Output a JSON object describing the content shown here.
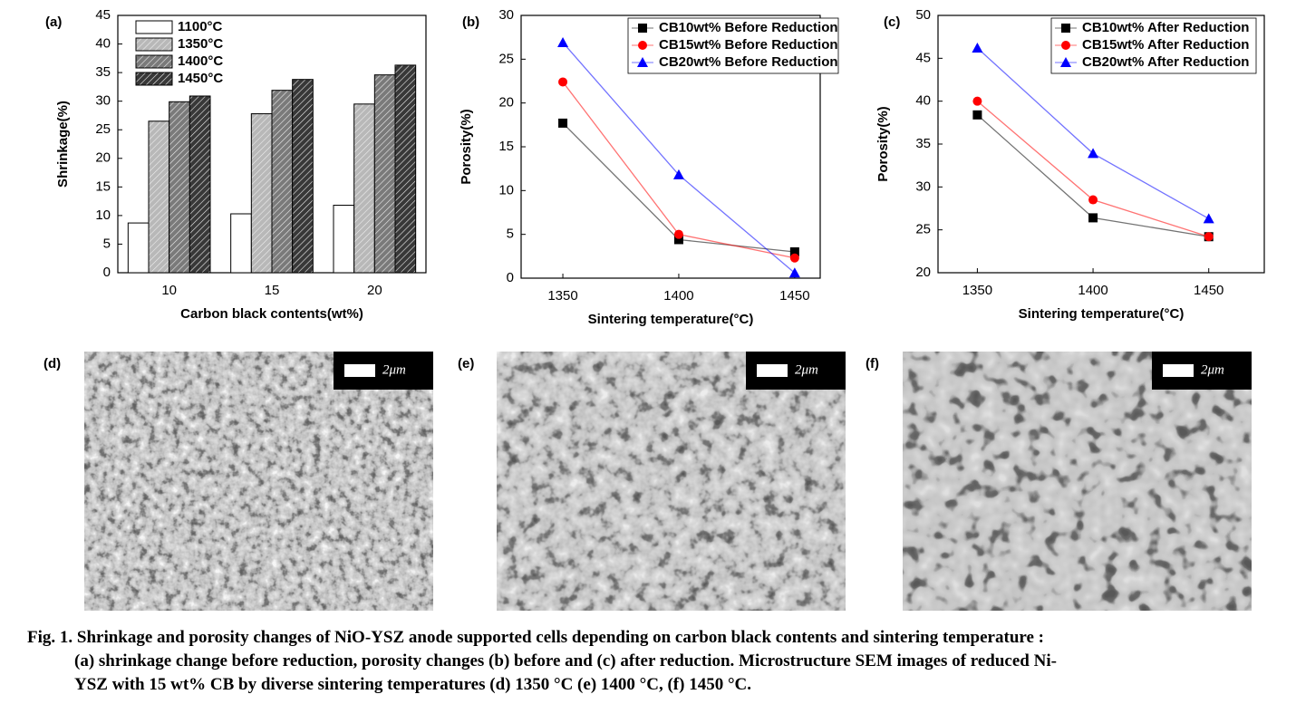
{
  "chart_data": [
    {
      "type": "bar",
      "panel_label": "(a)",
      "x_label": "Carbon black contents(wt%)",
      "y_label": "Shrinkage(%)",
      "categories": [
        "10",
        "15",
        "20"
      ],
      "series": [
        {
          "name": "1100°C",
          "color": "#ffffff",
          "hatch": false,
          "values": [
            8.7,
            10.3,
            11.8
          ]
        },
        {
          "name": "1350°C",
          "color": "#b8b8b8",
          "hatch": true,
          "values": [
            26.5,
            27.8,
            29.5
          ]
        },
        {
          "name": "1400°C",
          "color": "#7a7a7a",
          "hatch": true,
          "values": [
            29.9,
            31.9,
            34.6
          ]
        },
        {
          "name": "1450°C",
          "color": "#383838",
          "hatch": true,
          "values": [
            30.9,
            33.8,
            36.3
          ]
        }
      ],
      "ylim": [
        0,
        45
      ],
      "yticks": [
        0,
        5,
        10,
        15,
        20,
        25,
        30,
        35,
        40,
        45
      ],
      "legend": "upper left"
    },
    {
      "type": "line",
      "panel_label": "(b)",
      "x_label": "Sintering temperature(°C)",
      "y_label": "Porosity(%)",
      "x": [
        1350,
        1400,
        1450
      ],
      "series": [
        {
          "name": "CB10wt% Before Reduction",
          "color": "#000000",
          "marker": "square",
          "values": [
            17.7,
            4.4,
            3.0
          ]
        },
        {
          "name": "CB15wt% Before Reduction",
          "color": "#ff0000",
          "marker": "circle",
          "values": [
            22.4,
            5.0,
            2.3
          ]
        },
        {
          "name": "CB20wt% Before Reduction",
          "color": "#0000ff",
          "marker": "triangle",
          "values": [
            26.9,
            11.8,
            0.6
          ]
        }
      ],
      "xlim": [
        1332,
        1461
      ],
      "xticks": [
        1350,
        1400,
        1450
      ],
      "ylim": [
        0,
        30
      ],
      "yticks": [
        0,
        5,
        10,
        15,
        20,
        25,
        30
      ],
      "legend": "upper right"
    },
    {
      "type": "line",
      "panel_label": "(c)",
      "x_label": "Sintering temperature(°C)",
      "y_label": "Porosity(%)",
      "x": [
        1350,
        1400,
        1450
      ],
      "series": [
        {
          "name": "CB10wt% After Reduction",
          "color": "#000000",
          "marker": "square",
          "values": [
            38.4,
            26.4,
            24.2
          ]
        },
        {
          "name": "CB15wt% After Reduction",
          "color": "#ff0000",
          "marker": "circle",
          "values": [
            40.0,
            28.5,
            24.2
          ]
        },
        {
          "name": "CB20wt% After Reduction",
          "color": "#0000ff",
          "marker": "triangle",
          "values": [
            46.2,
            33.9,
            26.3
          ]
        }
      ],
      "xlim": [
        1333,
        1474
      ],
      "xticks": [
        1350,
        1400,
        1450
      ],
      "ylim": [
        20,
        50
      ],
      "yticks": [
        20,
        25,
        30,
        35,
        40,
        45,
        50
      ],
      "legend": "upper right"
    }
  ],
  "images": [
    {
      "label": "(d)",
      "scale_bar": "2μm"
    },
    {
      "label": "(e)",
      "scale_bar": "2μm"
    },
    {
      "label": "(f)",
      "scale_bar": "2μm"
    }
  ],
  "caption": [
    "Fig. 1. Shrinkage and porosity changes of NiO-YSZ anode supported cells depending on carbon black contents and sintering temperature :",
    "(a) shrinkage change before reduction, porosity changes (b) before and (c) after reduction. Microstructure SEM images of reduced Ni-",
    "YSZ with 15 wt% CB by diverse sintering temperatures (d) 1350 °C (e) 1400 °C, (f) 1450 °C."
  ]
}
